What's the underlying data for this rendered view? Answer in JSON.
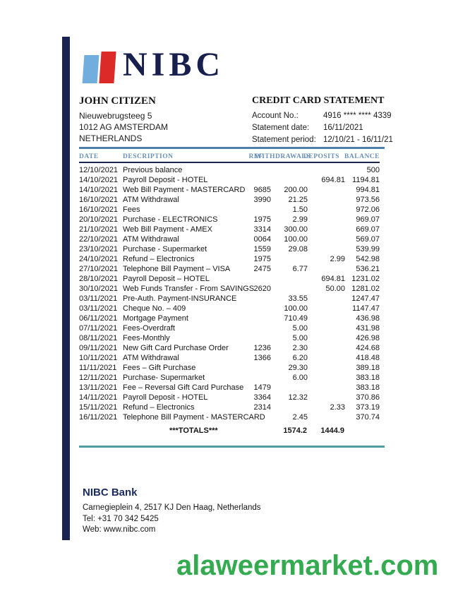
{
  "logo": {
    "text": "NIBC"
  },
  "customer": {
    "name": "JOHN CITIZEN",
    "address_lines": [
      "Nieuwebrugsteeg 5",
      "1012 AG AMSTERDAM",
      "NETHERLANDS"
    ]
  },
  "statement": {
    "title": "CREDIT CARD STATEMENT",
    "fields": [
      {
        "label": "Account No.:",
        "value": "4916 **** **** 4339"
      },
      {
        "label": "Statement date:",
        "value": "16/11/2021"
      },
      {
        "label": "Statement period:",
        "value": "12/10/21 - 16/11/21"
      }
    ]
  },
  "table": {
    "headers": [
      "DATE",
      "DESCRIPTION",
      "REF.",
      "WITHDRAWALS",
      "DEPOSITS",
      "BALANCE"
    ],
    "rows": [
      {
        "date": "12/10/2021",
        "description": "Previous balance",
        "ref": "",
        "withdrawal": "",
        "deposit": "",
        "balance": "500"
      },
      {
        "date": "14/10/2021",
        "description": "Payroll Deposit - HOTEL",
        "ref": "",
        "withdrawal": "",
        "deposit": "694.81",
        "balance": "1194.81"
      },
      {
        "date": "14/10/2021",
        "description": "Web Bill Payment - MASTERCARD",
        "ref": "9685",
        "withdrawal": "200.00",
        "deposit": "",
        "balance": "994.81"
      },
      {
        "date": "16/10/2021",
        "description": "ATM Withdrawal",
        "ref": "3990",
        "withdrawal": "21.25",
        "deposit": "",
        "balance": "973.56"
      },
      {
        "date": "16/10/2021",
        "description": "Fees",
        "ref": "",
        "withdrawal": "1.50",
        "deposit": "",
        "balance": "972.06"
      },
      {
        "date": "20/10/2021",
        "description": "Purchase  - ELECTRONICS",
        "ref": "1975",
        "withdrawal": "2.99",
        "deposit": "",
        "balance": "969.07"
      },
      {
        "date": "21/10/2021",
        "description": "Web Bill Payment - AMEX",
        "ref": "3314",
        "withdrawal": "300.00",
        "deposit": "",
        "balance": "669.07"
      },
      {
        "date": "22/10/2021",
        "description": "ATM Withdrawal",
        "ref": "0064",
        "withdrawal": "100.00",
        "deposit": "",
        "balance": "569.07"
      },
      {
        "date": "23/10/2021",
        "description": "Purchase - Supermarket",
        "ref": "1559",
        "withdrawal": "29.08",
        "deposit": "",
        "balance": "539.99"
      },
      {
        "date": "24/10/2021",
        "description": "Refund – Electronics",
        "ref": "1975",
        "withdrawal": "",
        "deposit": "2.99",
        "balance": "542.98"
      },
      {
        "date": "27/10/2021",
        "description": "Telephone Bill Payment – VISA",
        "ref": "2475",
        "withdrawal": "6.77",
        "deposit": "",
        "balance": "536.21"
      },
      {
        "date": "28/10/2021",
        "description": "Payroll Deposit – HOTEL",
        "ref": "",
        "withdrawal": "",
        "deposit": "694.81",
        "balance": "1231.02"
      },
      {
        "date": "30/10/2021",
        "description": "Web Funds Transfer - From SAVINGS",
        "ref": "2620",
        "withdrawal": "",
        "deposit": "50.00",
        "balance": "1281.02"
      },
      {
        "date": "03/11/2021",
        "description": "Pre-Auth. Payment-INSURANCE",
        "ref": "",
        "withdrawal": "33.55",
        "deposit": "",
        "balance": "1247.47"
      },
      {
        "date": "03/11/2021",
        "description": "Cheque No. – 409",
        "ref": "",
        "withdrawal": "100.00",
        "deposit": "",
        "balance": "1147.47"
      },
      {
        "date": "06/11/2021",
        "description": "Mortgage Payment",
        "ref": "",
        "withdrawal": "710.49",
        "deposit": "",
        "balance": "436.98"
      },
      {
        "date": "07/11/2021",
        "description": "Fees-Overdraft",
        "ref": "",
        "withdrawal": "5.00",
        "deposit": "",
        "balance": "431.98"
      },
      {
        "date": "08/11/2021",
        "description": "Fees-Monthly",
        "ref": "",
        "withdrawal": "5.00",
        "deposit": "",
        "balance": "426.98"
      },
      {
        "date": "09/11/2021",
        "description": "New Gift Card Purchase Order",
        "ref": "1236",
        "withdrawal": "2.30",
        "deposit": "",
        "balance": "424.68"
      },
      {
        "date": "10/11/2021",
        "description": "ATM Withdrawal",
        "ref": "1366",
        "withdrawal": "6.20",
        "deposit": "",
        "balance": "418.48"
      },
      {
        "date": "11/11/2021",
        "description": "Fees – Gift Purchase",
        "ref": "",
        "withdrawal": "29.30",
        "deposit": "",
        "balance": "389.18"
      },
      {
        "date": "12/11/2021",
        "description": "Purchase- Supermarket",
        "ref": "",
        "withdrawal": "6.00",
        "deposit": "",
        "balance": "383.18"
      },
      {
        "date": "13/11/2021",
        "description": "Fee – Reversal Gift Card Purchase",
        "ref": "1479",
        "withdrawal": "",
        "deposit": "",
        "balance": "383.18"
      },
      {
        "date": "14/11/2021",
        "description": "Payroll Deposit - HOTEL",
        "ref": "3364",
        "withdrawal": "12.32",
        "deposit": "",
        "balance": "370.86"
      },
      {
        "date": "15/11/2021",
        "description": "Refund – Electronics",
        "ref": "2314",
        "withdrawal": "",
        "deposit": "2.33",
        "balance": "373.19"
      },
      {
        "date": "16/11/2021",
        "description": "Telephone Bill Payment - MASTERCARD",
        "ref": "",
        "withdrawal": "2.45",
        "deposit": "",
        "balance": "370.74"
      }
    ],
    "totals": {
      "label": "***TOTALS***",
      "withdrawals": "1574.2",
      "deposits": "1444.9"
    }
  },
  "footer": {
    "bank_name": "NIBC Bank",
    "address": "Carnegieplein 4, 2517 KJ Den Haag, Netherlands",
    "tel": "Tel: +31 70 342 5425",
    "web": "Web: www.nibc.com"
  },
  "watermark": "alaweermarket.com",
  "colors": {
    "brand_navy": "#1b2451",
    "logo_light_blue": "#72aedd",
    "logo_red": "#dc2a28",
    "header_steel_blue": "#6a91b6",
    "divider_blue": "#4e80ac",
    "divider_teal": "#4f9ea6",
    "watermark_green": "#35ab51"
  }
}
